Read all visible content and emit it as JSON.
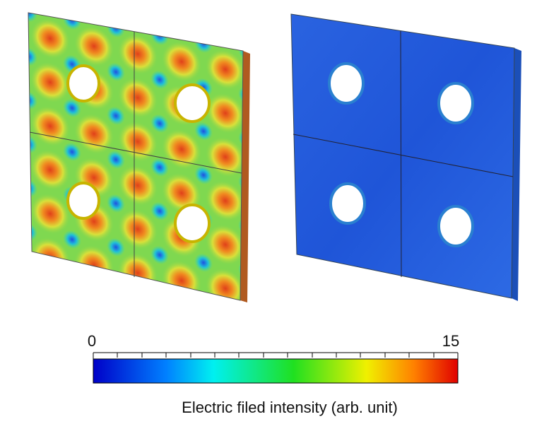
{
  "colorbar": {
    "min": 0,
    "max": 15,
    "label": "Electric filed intensity (arb. unit)"
  }
}
